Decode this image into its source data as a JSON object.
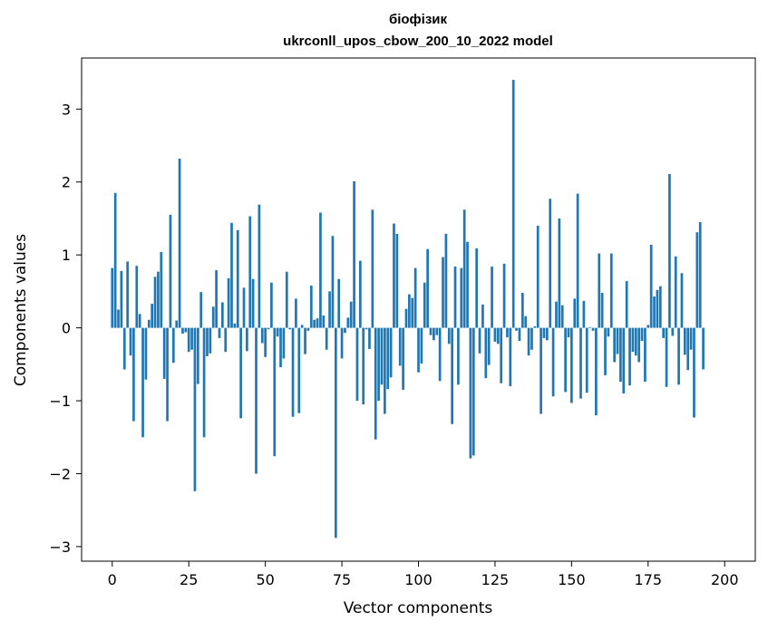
{
  "chart_data": {
    "type": "bar",
    "title": "біофізик",
    "subtitle": "ukrconll_upos_cbow_200_10_2022 model",
    "xlabel": "Vector components",
    "ylabel": "Components values",
    "xlim": [
      -10,
      210
    ],
    "ylim": [
      -3.2,
      3.7
    ],
    "xticks": [
      0,
      25,
      50,
      75,
      100,
      125,
      150,
      175,
      200
    ],
    "yticks": [
      -3,
      -2,
      -1,
      0,
      1,
      2,
      3
    ],
    "grid": false,
    "bar_color": "#1f77b4",
    "values": [
      0.82,
      1.85,
      0.25,
      0.78,
      -0.57,
      0.91,
      -0.38,
      -1.28,
      0.85,
      0.19,
      -1.5,
      -0.71,
      0.11,
      0.33,
      0.7,
      0.77,
      1.04,
      -0.7,
      -1.28,
      1.55,
      -0.48,
      0.1,
      2.32,
      -0.08,
      -0.06,
      -0.33,
      -0.3,
      -2.24,
      -0.77,
      0.49,
      -1.5,
      -0.39,
      -0.35,
      0.29,
      0.79,
      -0.14,
      0.35,
      -0.33,
      0.68,
      1.44,
      0.06,
      1.34,
      -1.24,
      0.55,
      -0.32,
      1.53,
      0.67,
      -2.0,
      1.69,
      -0.21,
      -0.4,
      -0.02,
      0.62,
      -1.76,
      -0.12,
      -0.54,
      -0.42,
      0.77,
      -0.02,
      -1.22,
      0.4,
      -1.17,
      0.04,
      -0.36,
      -0.04,
      0.58,
      0.11,
      0.13,
      1.58,
      0.17,
      -0.3,
      0.5,
      1.26,
      -2.88,
      0.67,
      -0.42,
      -0.07,
      0.14,
      0.36,
      2.01,
      -1.0,
      0.92,
      -1.05,
      -0.02,
      -0.29,
      1.62,
      -1.53,
      -1.0,
      -0.78,
      -1.18,
      -0.84,
      -0.68,
      1.43,
      1.29,
      -0.52,
      -0.85,
      0.26,
      0.46,
      0.41,
      0.82,
      -0.61,
      -0.49,
      0.62,
      1.08,
      -0.1,
      -0.17,
      -0.1,
      -0.73,
      0.97,
      1.29,
      -0.22,
      -1.32,
      0.84,
      -0.78,
      0.82,
      1.62,
      1.18,
      -1.79,
      -1.75,
      1.09,
      -0.35,
      0.32,
      -0.69,
      -0.51,
      0.84,
      -0.19,
      -0.22,
      -0.76,
      0.88,
      -0.13,
      -0.8,
      3.4,
      -0.04,
      -0.18,
      0.48,
      0.16,
      -0.38,
      -0.3,
      0.02,
      1.4,
      -1.18,
      -0.14,
      -0.17,
      1.77,
      -0.94,
      0.36,
      1.5,
      0.31,
      -0.88,
      -0.13,
      -1.03,
      0.4,
      1.84,
      -0.97,
      0.37,
      -0.89,
      0.01,
      -0.04,
      -1.2,
      1.02,
      0.48,
      -0.65,
      -0.12,
      1.02,
      -0.47,
      -0.36,
      -0.74,
      -0.9,
      0.64,
      -0.79,
      -0.33,
      -0.38,
      -0.47,
      -0.18,
      -0.74,
      0.04,
      1.14,
      0.43,
      0.52,
      0.57,
      -0.14,
      -0.81,
      2.11,
      -0.11,
      0.98,
      -0.78,
      0.75,
      -0.37,
      -0.58,
      -0.3,
      -1.23,
      1.31,
      1.45,
      -0.57
    ]
  }
}
